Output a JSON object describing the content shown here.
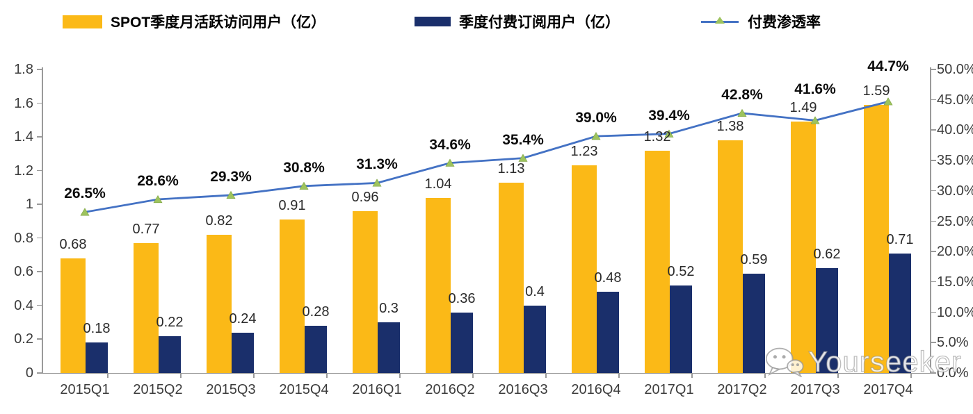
{
  "legend": {
    "items": [
      {
        "label": "SPOT季度月活跃访问用户（亿）",
        "swatch": "bar",
        "color": "#FBB917"
      },
      {
        "label": "季度付费订阅用户（亿）",
        "swatch": "bar",
        "color": "#1A2F6B"
      },
      {
        "label": "付费渗透率",
        "swatch": "line-triangle-marker",
        "line_color": "#4472C4",
        "marker_color": "#9DC35E"
      }
    ]
  },
  "chart_data": {
    "type": "combo",
    "categories": [
      "2015Q1",
      "2015Q2",
      "2015Q3",
      "2015Q4",
      "2016Q1",
      "2016Q2",
      "2016Q3",
      "2016Q4",
      "2017Q1",
      "2017Q2",
      "2017Q3",
      "2017Q4"
    ],
    "series": [
      {
        "name": "SPOT季度月活跃访问用户（亿）",
        "type": "bar",
        "axis": "left",
        "color": "#FBB917",
        "values": [
          0.68,
          0.77,
          0.82,
          0.91,
          0.96,
          1.04,
          1.13,
          1.23,
          1.32,
          1.38,
          1.49,
          1.59
        ],
        "labels": [
          "0.68",
          "0.77",
          "0.82",
          "0.91",
          "0.96",
          "1.04",
          "1.13",
          "1.23",
          "1.32",
          "1.38",
          "1.49",
          "1.59"
        ]
      },
      {
        "name": "季度付费订阅用户（亿）",
        "type": "bar",
        "axis": "left",
        "color": "#1A2F6B",
        "values": [
          0.18,
          0.22,
          0.24,
          0.28,
          0.3,
          0.36,
          0.4,
          0.48,
          0.52,
          0.59,
          0.62,
          0.71
        ],
        "labels": [
          "0.18",
          "0.22",
          "0.24",
          "0.28",
          "0.3",
          "0.36",
          "0.4",
          "0.48",
          "0.52",
          "0.59",
          "0.62",
          "0.71"
        ]
      },
      {
        "name": "付费渗透率",
        "type": "line",
        "axis": "right",
        "color": "#4472C4",
        "marker": "triangle",
        "marker_color": "#9DC35E",
        "values": [
          26.5,
          28.6,
          29.3,
          30.8,
          31.3,
          34.6,
          35.4,
          39.0,
          39.4,
          42.8,
          41.6,
          44.7
        ],
        "labels": [
          "26.5%",
          "28.6%",
          "29.3%",
          "30.8%",
          "31.3%",
          "34.6%",
          "35.4%",
          "39.0%",
          "39.4%",
          "42.8%",
          "41.6%",
          "44.7%"
        ]
      }
    ],
    "left_axis": {
      "min": 0,
      "max": 1.8,
      "step": 0.2,
      "tick_labels": [
        "0",
        "0.2",
        "0.4",
        "0.6",
        "0.8",
        "1",
        "1.2",
        "1.4",
        "1.6",
        "1.8"
      ]
    },
    "right_axis": {
      "min": 0,
      "max": 50,
      "step": 5,
      "tick_labels": [
        "0.0%",
        "5.0%",
        "10.0%",
        "15.0%",
        "20.0%",
        "25.0%",
        "30.0%",
        "35.0%",
        "40.0%",
        "45.0%",
        "50.0%"
      ]
    },
    "grid": false,
    "legend_position": "top"
  },
  "watermark": {
    "text": "Yourseeker",
    "icon": "wechat-icon"
  }
}
